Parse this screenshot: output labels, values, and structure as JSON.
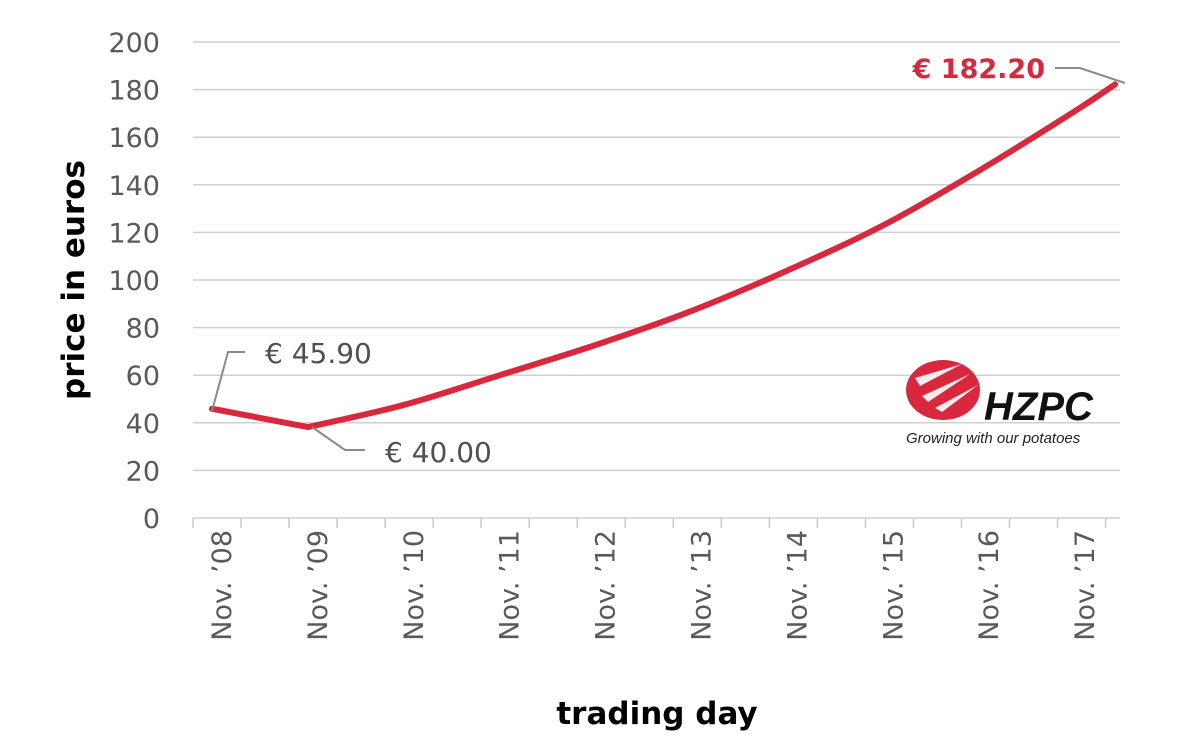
{
  "chart_data": {
    "type": "line",
    "xlabel": "trading day",
    "ylabel": "price in euros",
    "ylim": [
      0,
      200
    ],
    "yticks": [
      0,
      20,
      40,
      60,
      80,
      100,
      120,
      140,
      160,
      180,
      200
    ],
    "categories": [
      "Nov. ’08",
      "Nov. ’09",
      "Nov. ’10",
      "Nov. ’11",
      "Nov. ’12",
      "Nov. ’13",
      "Nov. ’14",
      "Nov. ’15",
      "Nov. ’16",
      "Nov. ’17"
    ],
    "grid": "horizontal",
    "line_color": "#d9283e",
    "series": [
      {
        "points": [
          {
            "date": "2008-11",
            "y": 45.9
          },
          {
            "date": "2009-11",
            "y": 38.2
          },
          {
            "date": "2010-11",
            "y": 47.5
          },
          {
            "date": "2011-11",
            "y": 60
          },
          {
            "date": "2012-11",
            "y": 72.7
          },
          {
            "date": "2013-11",
            "y": 87
          },
          {
            "date": "2014-11",
            "y": 104
          },
          {
            "date": "2015-11",
            "y": 123
          },
          {
            "date": "2016-11",
            "y": 146
          },
          {
            "date": "2017-11",
            "y": 171
          },
          {
            "date": "2018-04",
            "y": 182.2
          }
        ]
      }
    ],
    "annotations": [
      {
        "text": "€ 45.90",
        "color": "#505050"
      },
      {
        "text": "€ 40.00",
        "color": "#505050"
      },
      {
        "text": "€ 182.20",
        "color": "#d9283e"
      }
    ]
  },
  "logo": {
    "name": "HZPC",
    "tagline": "Growing with our potatoes"
  }
}
